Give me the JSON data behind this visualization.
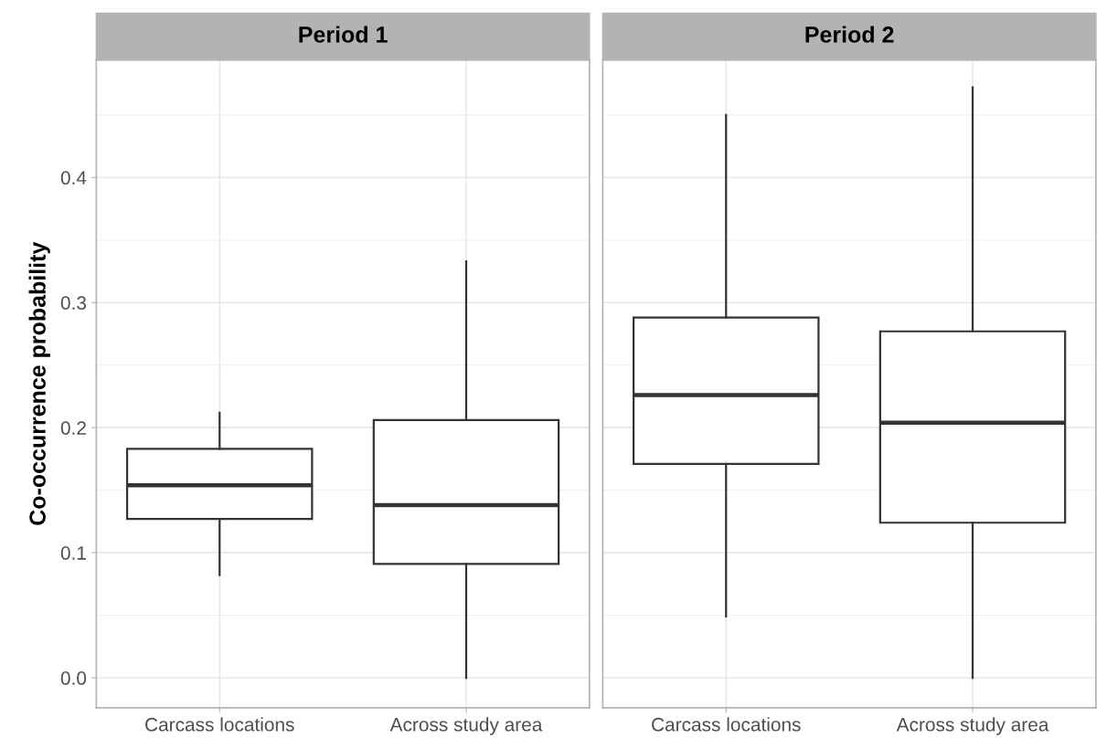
{
  "chart_data": [
    {
      "type": "box",
      "title": "Period 1",
      "ylabel": "Co-occurrence probability",
      "categories": [
        "Carcass locations",
        "Across study area"
      ],
      "boxes": [
        {
          "low": 0.082,
          "q1": 0.127,
          "median": 0.154,
          "q3": 0.183,
          "high": 0.212
        },
        {
          "low": 0.0,
          "q1": 0.091,
          "median": 0.138,
          "q3": 0.206,
          "high": 0.333
        }
      ],
      "color": "#333333",
      "ylim": [
        -0.024,
        0.494
      ],
      "yticks": [
        {
          "value": 0.0,
          "label": "0.0"
        },
        0.1,
        0.2,
        0.3,
        0.4
      ],
      "grid": true
    },
    {
      "type": "box",
      "title": "Period 2",
      "categories": [
        "Carcass locations",
        "Across study area"
      ],
      "boxes": [
        {
          "low": 0.049,
          "q1": 0.171,
          "median": 0.226,
          "q3": 0.288,
          "high": 0.45
        },
        {
          "low": 0.0,
          "q1": 0.124,
          "median": 0.204,
          "q3": 0.277,
          "high": 0.472
        }
      ],
      "color": "#333333",
      "ylim": [
        -0.024,
        0.494
      ],
      "yticks": [
        0.0,
        0.1,
        0.2,
        0.3,
        0.4
      ],
      "grid": true,
      "tick_labels": "x"
    }
  ]
}
